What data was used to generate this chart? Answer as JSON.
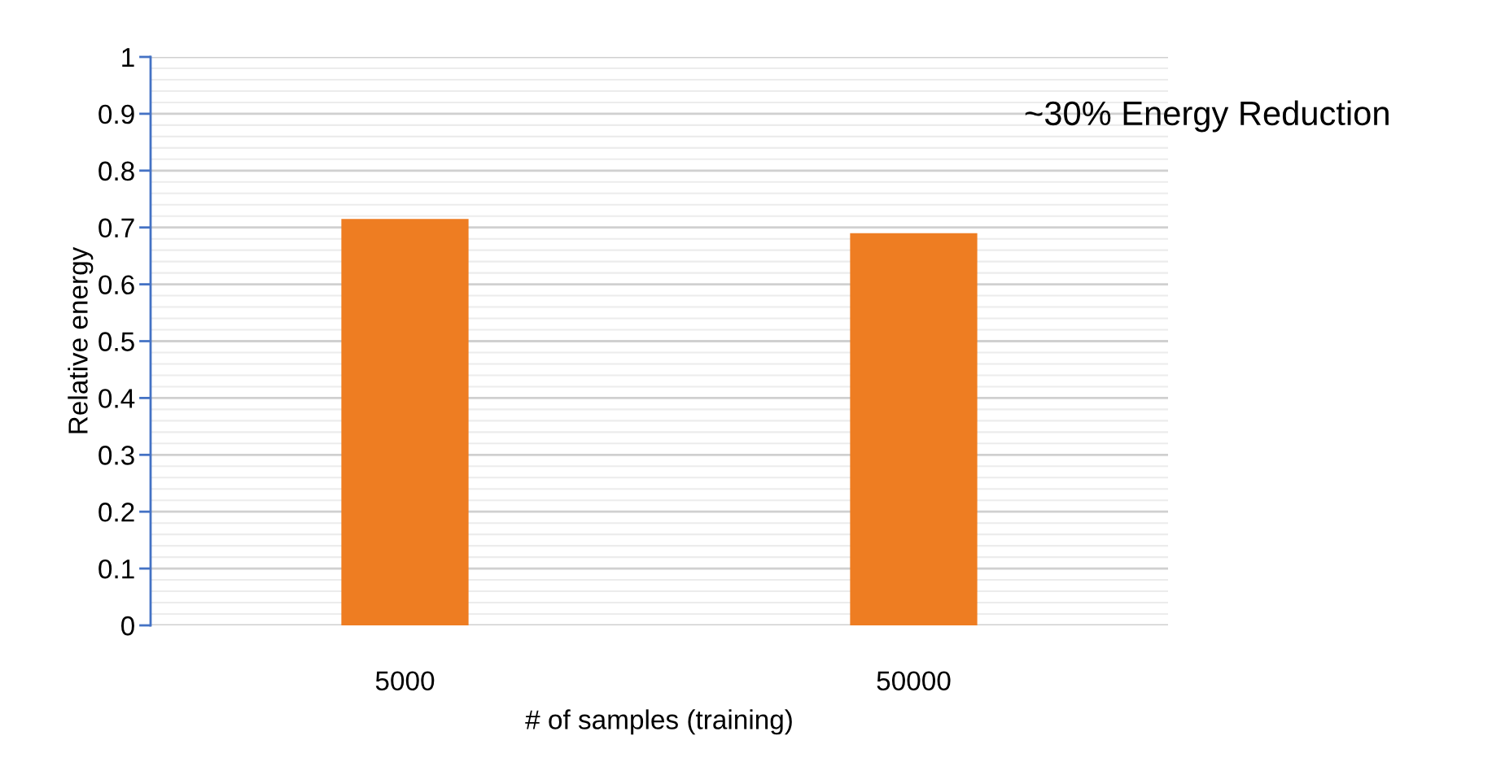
{
  "chart_data": {
    "type": "bar",
    "categories": [
      "5000",
      "50000"
    ],
    "values": [
      0.715,
      0.69
    ],
    "color": "#ee7d22",
    "xlabel": "# of samples (training)",
    "ylabel": "Relative energy",
    "ylim": [
      0,
      1
    ],
    "yticks": [
      0,
      0.1,
      0.2,
      0.3,
      0.4,
      0.5,
      0.6,
      0.7,
      0.8,
      0.9,
      1
    ],
    "grid": "y",
    "annotations": [
      "~30% Energy Reduction"
    ]
  }
}
